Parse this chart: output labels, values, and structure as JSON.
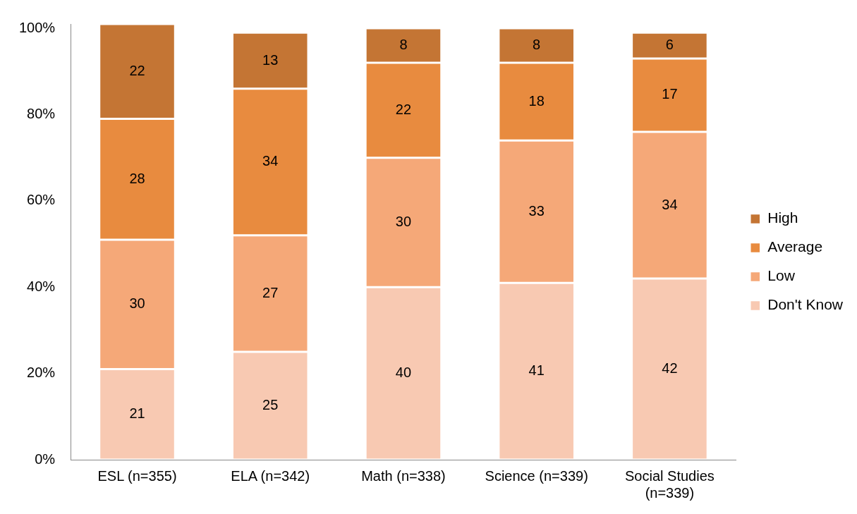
{
  "chart_data": {
    "type": "bar",
    "stacked": true,
    "categories": [
      "ESL (n=355)",
      "ELA (n=342)",
      "Math (n=338)",
      "Science (n=339)",
      "Social Studies (n=339)"
    ],
    "series": [
      {
        "name": "Don't Know",
        "color": "#f8c9b2",
        "values": [
          21,
          25,
          40,
          41,
          42
        ]
      },
      {
        "name": "Low",
        "color": "#f5a878",
        "values": [
          30,
          27,
          30,
          33,
          34
        ]
      },
      {
        "name": "Average",
        "color": "#e88b3f",
        "values": [
          28,
          34,
          22,
          18,
          17
        ]
      },
      {
        "name": "High",
        "color": "#c47534",
        "values": [
          22,
          13,
          8,
          8,
          6
        ]
      }
    ],
    "ylim": [
      0,
      101
    ],
    "yticks": [
      {
        "value": 0,
        "label": "0%"
      },
      {
        "value": 20,
        "label": "20%"
      },
      {
        "value": 40,
        "label": "40%"
      },
      {
        "value": 60,
        "label": "60%"
      },
      {
        "value": 80,
        "label": "80%"
      },
      {
        "value": 100,
        "label": "100%"
      }
    ],
    "grid": false,
    "legend": "right",
    "data_labels": true
  }
}
